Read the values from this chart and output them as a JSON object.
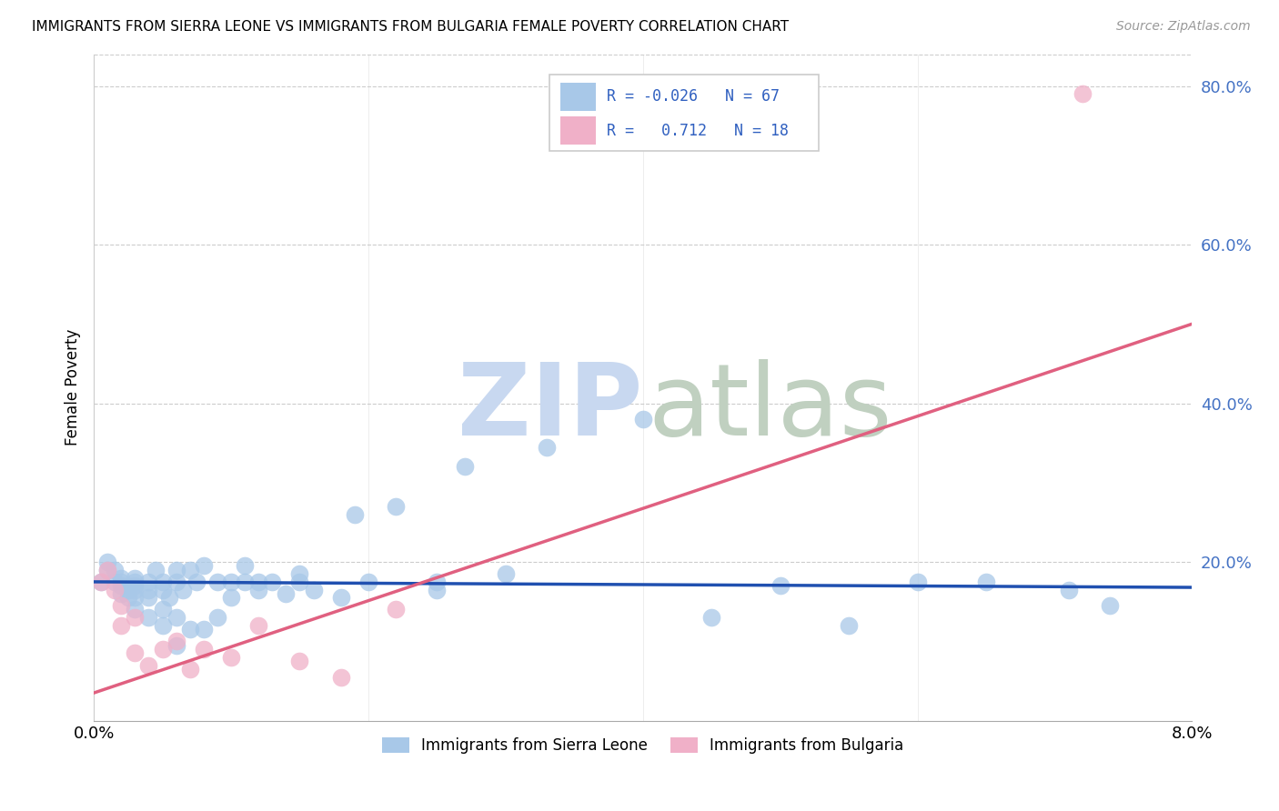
{
  "title": "IMMIGRANTS FROM SIERRA LEONE VS IMMIGRANTS FROM BULGARIA FEMALE POVERTY CORRELATION CHART",
  "source": "Source: ZipAtlas.com",
  "ylabel": "Female Poverty",
  "xlim": [
    0.0,
    0.08
  ],
  "ylim": [
    0.0,
    0.84
  ],
  "color_sierra": "#a8c8e8",
  "color_bulgaria": "#f0b0c8",
  "color_sierra_line": "#2050b0",
  "color_bulgaria_line": "#e06080",
  "color_ytick": "#4472c4",
  "watermark_zip_color": "#c8d8f0",
  "watermark_atlas_color": "#c0d0c0",
  "sierra_leone_x": [
    0.0005,
    0.001,
    0.001,
    0.0015,
    0.0015,
    0.002,
    0.002,
    0.002,
    0.002,
    0.0025,
    0.0025,
    0.003,
    0.003,
    0.003,
    0.003,
    0.003,
    0.003,
    0.004,
    0.004,
    0.004,
    0.004,
    0.0045,
    0.005,
    0.005,
    0.005,
    0.005,
    0.0055,
    0.006,
    0.006,
    0.006,
    0.006,
    0.0065,
    0.007,
    0.007,
    0.0075,
    0.008,
    0.008,
    0.009,
    0.009,
    0.01,
    0.01,
    0.011,
    0.011,
    0.012,
    0.012,
    0.013,
    0.014,
    0.015,
    0.015,
    0.016,
    0.018,
    0.019,
    0.02,
    0.022,
    0.025,
    0.025,
    0.027,
    0.03,
    0.033,
    0.04,
    0.045,
    0.05,
    0.055,
    0.06,
    0.065,
    0.071,
    0.074
  ],
  "sierra_leone_y": [
    0.175,
    0.19,
    0.2,
    0.175,
    0.19,
    0.16,
    0.17,
    0.175,
    0.18,
    0.155,
    0.165,
    0.14,
    0.155,
    0.165,
    0.17,
    0.175,
    0.18,
    0.13,
    0.155,
    0.165,
    0.175,
    0.19,
    0.12,
    0.14,
    0.165,
    0.175,
    0.155,
    0.095,
    0.13,
    0.175,
    0.19,
    0.165,
    0.115,
    0.19,
    0.175,
    0.115,
    0.195,
    0.13,
    0.175,
    0.155,
    0.175,
    0.175,
    0.195,
    0.165,
    0.175,
    0.175,
    0.16,
    0.175,
    0.185,
    0.165,
    0.155,
    0.26,
    0.175,
    0.27,
    0.165,
    0.175,
    0.32,
    0.185,
    0.345,
    0.38,
    0.13,
    0.17,
    0.12,
    0.175,
    0.175,
    0.165,
    0.145
  ],
  "bulgaria_x": [
    0.0005,
    0.001,
    0.0015,
    0.002,
    0.002,
    0.003,
    0.003,
    0.004,
    0.005,
    0.006,
    0.007,
    0.008,
    0.01,
    0.012,
    0.015,
    0.018,
    0.022,
    0.072
  ],
  "bulgaria_y": [
    0.175,
    0.19,
    0.165,
    0.12,
    0.145,
    0.085,
    0.13,
    0.07,
    0.09,
    0.1,
    0.065,
    0.09,
    0.08,
    0.12,
    0.075,
    0.055,
    0.14,
    0.79
  ],
  "sierra_line_x": [
    0.0,
    0.08
  ],
  "sierra_line_y": [
    0.175,
    0.168
  ],
  "bulgaria_line_x": [
    0.0,
    0.08
  ],
  "bulgaria_line_y": [
    0.035,
    0.5
  ]
}
